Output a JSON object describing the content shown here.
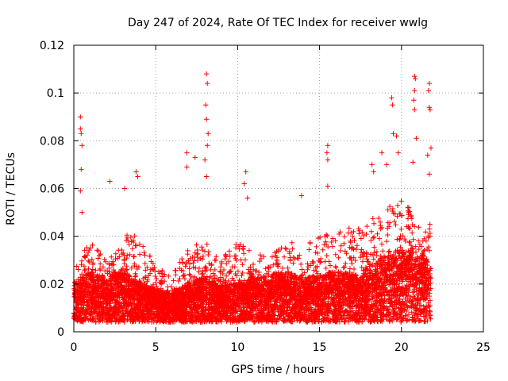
{
  "chart_data": {
    "type": "scatter",
    "title": "Day 247 of 2024, Rate Of TEC Index for receiver wwlg",
    "xlabel": "GPS time / hours",
    "ylabel": "ROTI / TECUs",
    "xlim": [
      0,
      25
    ],
    "ylim": [
      0,
      0.12
    ],
    "xticks": [
      0,
      5,
      10,
      15,
      20,
      25
    ],
    "xtick_labels": [
      "0",
      "5",
      "10",
      "15",
      "20",
      "25"
    ],
    "yticks": [
      0,
      0.02,
      0.04,
      0.06,
      0.08,
      0.1,
      0.12
    ],
    "ytick_labels": [
      "0",
      "0.02",
      "0.04",
      "0.06",
      "0.08",
      "0.1",
      "0.12"
    ],
    "grid": true,
    "marker": "+",
    "color": "#ff0000",
    "data_time_range_hours": [
      0,
      21.8
    ],
    "envelope": {
      "x": [
        0,
        1,
        2,
        3,
        4,
        5,
        6,
        7,
        8,
        9,
        10,
        11,
        12,
        13,
        14,
        15,
        16,
        17,
        18,
        19,
        20,
        21,
        21.8
      ],
      "median": [
        0.012,
        0.016,
        0.014,
        0.016,
        0.013,
        0.011,
        0.01,
        0.013,
        0.014,
        0.012,
        0.013,
        0.014,
        0.015,
        0.016,
        0.014,
        0.015,
        0.016,
        0.015,
        0.017,
        0.02,
        0.022,
        0.022,
        0.018
      ],
      "typical_max": [
        0.028,
        0.038,
        0.03,
        0.04,
        0.042,
        0.028,
        0.024,
        0.035,
        0.038,
        0.03,
        0.04,
        0.032,
        0.033,
        0.038,
        0.036,
        0.04,
        0.042,
        0.044,
        0.048,
        0.052,
        0.055,
        0.05,
        0.045
      ]
    },
    "notable_points": [
      {
        "x": 0.4,
        "y": 0.09
      },
      {
        "x": 0.4,
        "y": 0.085
      },
      {
        "x": 0.45,
        "y": 0.083
      },
      {
        "x": 0.5,
        "y": 0.078
      },
      {
        "x": 0.45,
        "y": 0.068
      },
      {
        "x": 0.4,
        "y": 0.059
      },
      {
        "x": 0.5,
        "y": 0.05
      },
      {
        "x": 2.2,
        "y": 0.063
      },
      {
        "x": 3.1,
        "y": 0.06
      },
      {
        "x": 3.8,
        "y": 0.067
      },
      {
        "x": 3.9,
        "y": 0.065
      },
      {
        "x": 6.9,
        "y": 0.075
      },
      {
        "x": 6.9,
        "y": 0.069
      },
      {
        "x": 7.4,
        "y": 0.073
      },
      {
        "x": 8.1,
        "y": 0.108
      },
      {
        "x": 8.15,
        "y": 0.104
      },
      {
        "x": 8.05,
        "y": 0.095
      },
      {
        "x": 8.1,
        "y": 0.089
      },
      {
        "x": 8.2,
        "y": 0.083
      },
      {
        "x": 8.15,
        "y": 0.078
      },
      {
        "x": 8.0,
        "y": 0.072
      },
      {
        "x": 8.1,
        "y": 0.065
      },
      {
        "x": 10.5,
        "y": 0.067
      },
      {
        "x": 10.4,
        "y": 0.062
      },
      {
        "x": 10.6,
        "y": 0.056
      },
      {
        "x": 13.9,
        "y": 0.057
      },
      {
        "x": 15.5,
        "y": 0.078
      },
      {
        "x": 15.45,
        "y": 0.075
      },
      {
        "x": 15.5,
        "y": 0.072
      },
      {
        "x": 15.5,
        "y": 0.061
      },
      {
        "x": 18.2,
        "y": 0.07
      },
      {
        "x": 18.3,
        "y": 0.067
      },
      {
        "x": 18.8,
        "y": 0.075
      },
      {
        "x": 19.1,
        "y": 0.07
      },
      {
        "x": 19.4,
        "y": 0.098
      },
      {
        "x": 19.45,
        "y": 0.095
      },
      {
        "x": 19.5,
        "y": 0.083
      },
      {
        "x": 19.7,
        "y": 0.082
      },
      {
        "x": 19.8,
        "y": 0.075
      },
      {
        "x": 20.8,
        "y": 0.107
      },
      {
        "x": 20.85,
        "y": 0.106
      },
      {
        "x": 20.8,
        "y": 0.101
      },
      {
        "x": 20.75,
        "y": 0.097
      },
      {
        "x": 20.8,
        "y": 0.093
      },
      {
        "x": 20.9,
        "y": 0.081
      },
      {
        "x": 20.7,
        "y": 0.071
      },
      {
        "x": 21.7,
        "y": 0.104
      },
      {
        "x": 21.65,
        "y": 0.101
      },
      {
        "x": 21.7,
        "y": 0.094
      },
      {
        "x": 21.75,
        "y": 0.093
      },
      {
        "x": 21.8,
        "y": 0.077
      },
      {
        "x": 21.6,
        "y": 0.074
      },
      {
        "x": 21.7,
        "y": 0.066
      }
    ]
  }
}
